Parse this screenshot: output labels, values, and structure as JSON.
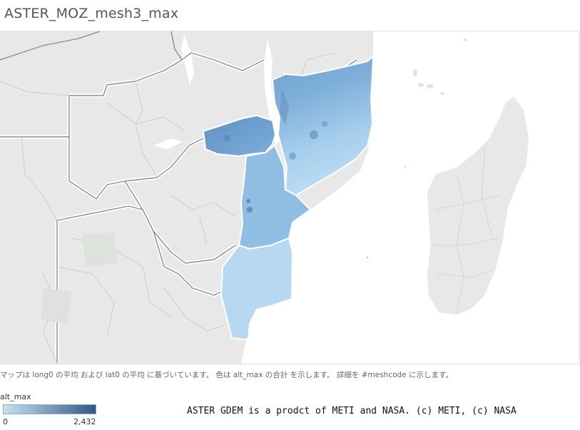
{
  "title": "ASTER_MOZ_mesh3_max",
  "map": {
    "caption": "マップは long0 の平均 および lat0 の平均 に基づいています。 色は alt_max の合計 を示します。 詳細を #meshcode に示します。"
  },
  "legend": {
    "title": "alt_max",
    "min_label": "0",
    "max_label": "2,432",
    "min_value": 0,
    "max_value": 2432,
    "color_low": "#c6e0f3",
    "color_high": "#2e5a88"
  },
  "credit": "ASTER GDEM is a prodct of METI and NASA. (c) METI, (c) NASA",
  "colors": {
    "land": "#e8e8e8",
    "land_border": "#ffffff",
    "country_border": "#8a8a8a",
    "inner_border": "#c8c8c8",
    "water": "#ffffff"
  }
}
